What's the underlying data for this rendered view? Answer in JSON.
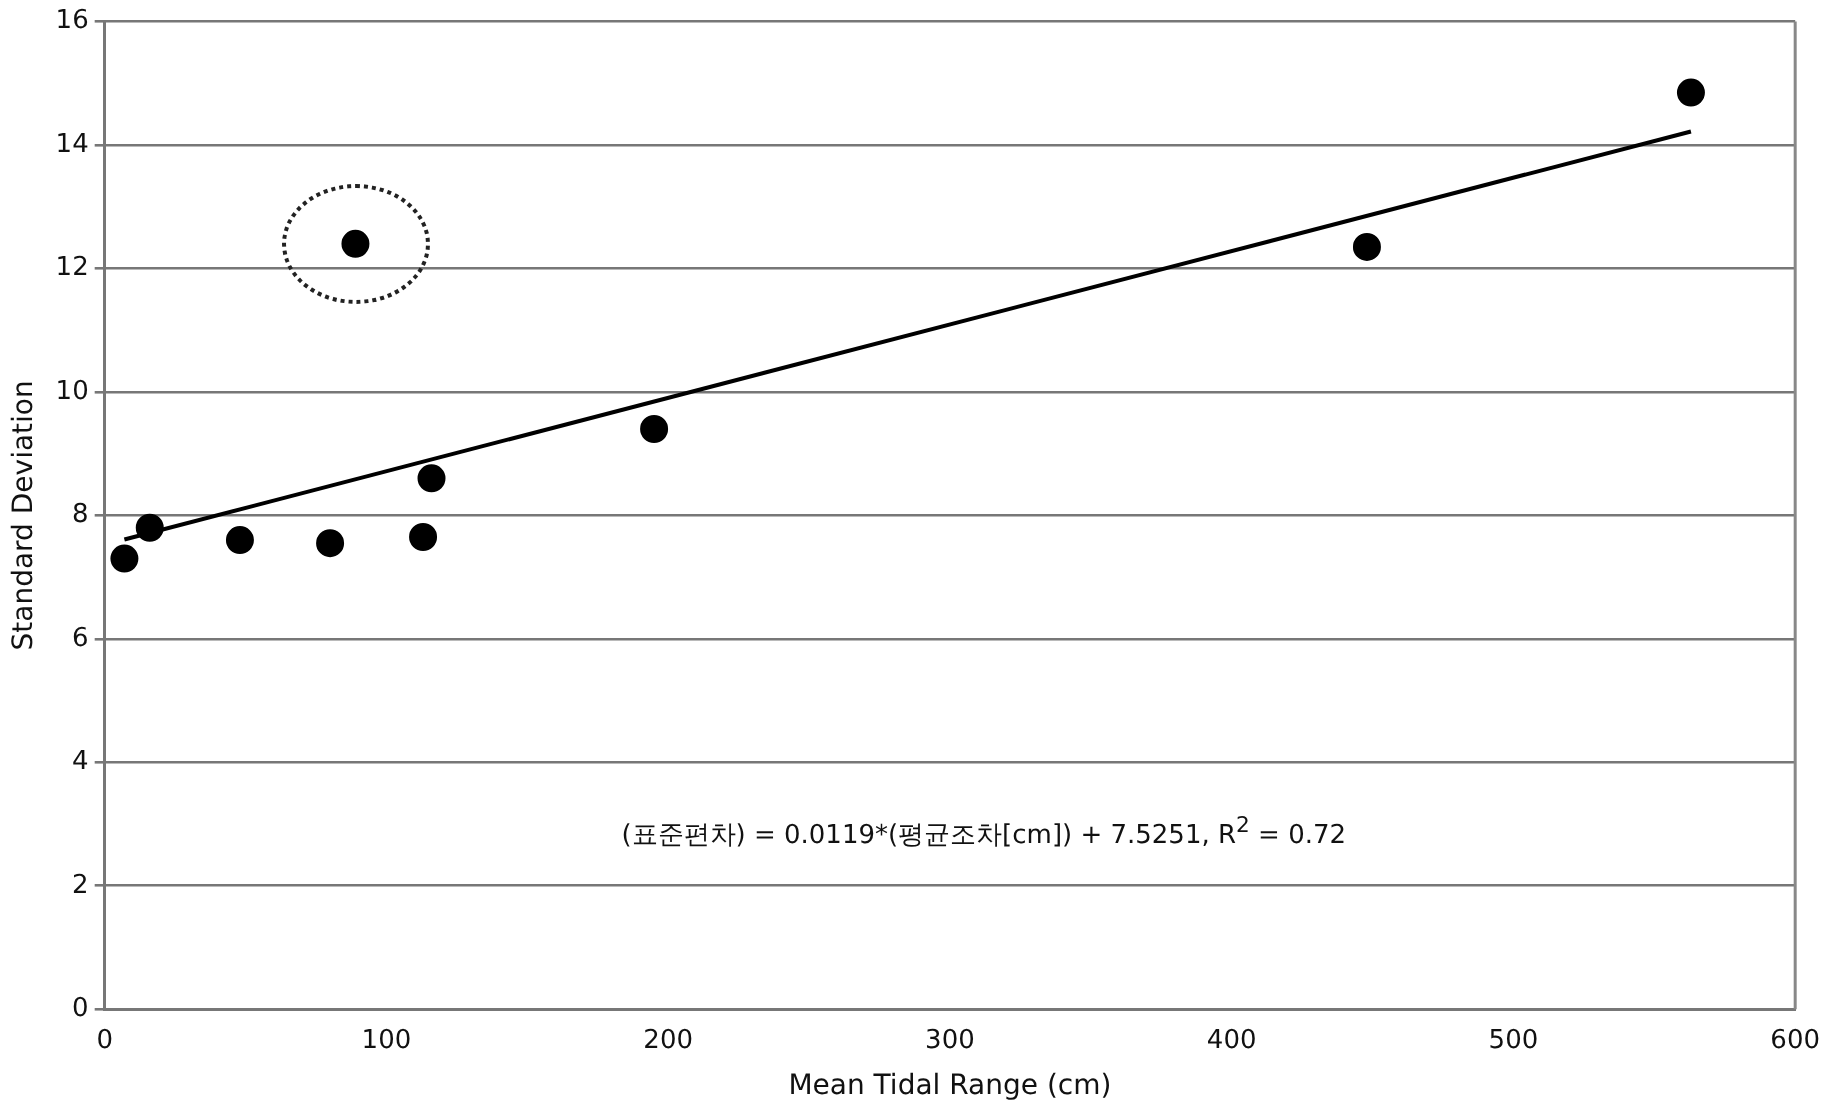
{
  "chart_data": {
    "type": "scatter",
    "xlabel": "Mean Tidal Range (cm)",
    "ylabel": "Standard Deviation",
    "xlim": [
      0,
      600
    ],
    "xticks": [
      0,
      100,
      200,
      300,
      400,
      500,
      600
    ],
    "ylim": [
      0,
      16
    ],
    "yticks": [
      0,
      2,
      4,
      6,
      8,
      10,
      12,
      14,
      16
    ],
    "grid": "y",
    "legend": false,
    "marker": "circle",
    "series": [
      {
        "color": "#000000",
        "x": [
          7,
          16,
          48,
          80,
          89,
          113,
          116,
          195,
          448,
          563
        ],
        "values": [
          7.3,
          7.8,
          7.6,
          7.55,
          12.4,
          7.65,
          8.6,
          9.4,
          12.35,
          14.85
        ]
      },
      {
        "type": "line",
        "color": "#000000",
        "marker": "none",
        "x": [
          7,
          563
        ],
        "values": [
          7.61,
          14.22
        ]
      }
    ],
    "annotations": [
      "(표준편차) = 0.0119*(평균조차[cm]) + 7.5251, R$^{2}$ = 0.72"
    ]
  }
}
